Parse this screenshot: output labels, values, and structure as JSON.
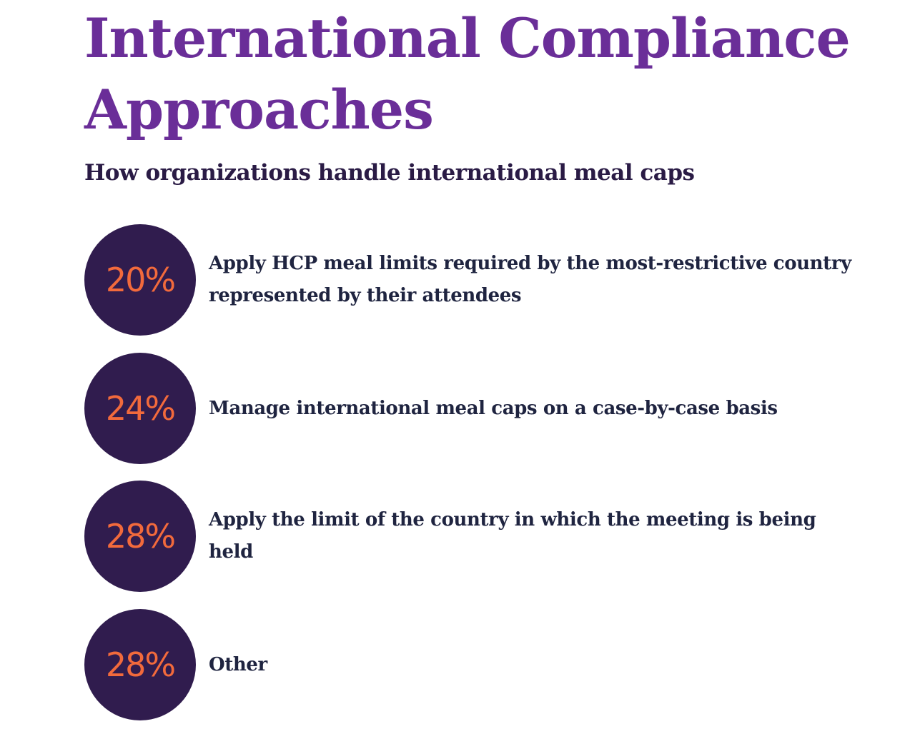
{
  "title": "International Compliance Approaches",
  "subtitle": "How organizations handle international meal caps",
  "colors": {
    "title": "#6a2e98",
    "circle": "#301c4e",
    "percent": "#f26a3c",
    "text": "#1f2440"
  },
  "chart_data": {
    "type": "table",
    "title": "International Compliance Approaches",
    "subtitle": "How organizations handle international meal caps",
    "items": [
      {
        "label": "Apply HCP meal limits required by the most-restrictive country represented by their attendees",
        "value": 20,
        "display": "20%"
      },
      {
        "label": "Manage international meal caps on a case-by-case basis",
        "value": 24,
        "display": "24%"
      },
      {
        "label": "Apply the limit of the country in which the meeting is being held",
        "value": 28,
        "display": "28%"
      },
      {
        "label": "Other",
        "value": 28,
        "display": "28%"
      }
    ]
  }
}
